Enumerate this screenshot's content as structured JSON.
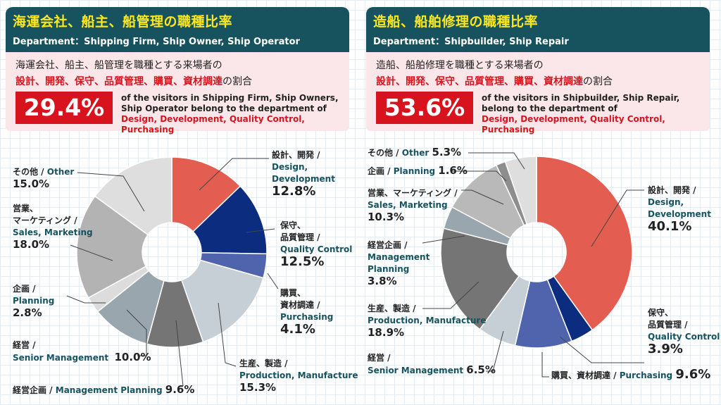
{
  "panels": [
    {
      "title_jp": "海運会社、船主、船管理の職種比率",
      "title_en": "Department：Shipping Firm, Ship Owner, Ship Operator",
      "intro_jp": "海運会社、船主、船管理を職種とする来場者の",
      "intro_red": "設計、開発、保守、品質管理、購買、資材調達",
      "intro_tail": "の割合",
      "percent": "29.4%",
      "desc_line1": "of the visitors in Shipping Firm, Ship Owners,",
      "desc_line2": "Ship Operator belong to the department of",
      "desc_line3": "Design, Development, Quality Control, Purchasing"
    },
    {
      "title_jp": "造船、船舶修理の職種比率",
      "title_en": "Department：Shipbuilder, Ship Repair",
      "intro_jp": "造船、船舶修理を職種とする来場者の",
      "intro_red": "設計、開発、保守、品質管理、購買、資材調達",
      "intro_tail": "の割合",
      "percent": "53.6%",
      "desc_line1": "of the visitors in Shipbuilder, Ship Repair,",
      "desc_line2": "belong to the department of",
      "desc_line3": "Design, Development, Quality Control, Purchasing"
    }
  ],
  "labels1": {
    "design_jp": "設計、開発 /",
    "design_en1": "Design,",
    "design_en2": "Development",
    "design_v": "12.8%",
    "qc_jp1": "保守、",
    "qc_jp2": "品質管理 /",
    "qc_en": "Quality Control",
    "qc_v": "12.5%",
    "pur_jp1": "購買、",
    "pur_jp2": "資材調達 /",
    "pur_en": "Purchasing",
    "pur_v": "4.1%",
    "prod_jp": "生産、製造 /",
    "prod_en": "Production, Manufacture",
    "prod_v": "15.3%",
    "mgp_jp": "経営企画 / ",
    "mgp_en": "Management Planning",
    "mgp_v": "9.6%",
    "sm_jp": "経営 /",
    "sm_en": "Senior Management",
    "sm_v": "10.0%",
    "pl_jp": "企画 /",
    "pl_en": "Planning",
    "pl_v": "2.8%",
    "sales_jp1": "営業、",
    "sales_jp2": "マーケティング /",
    "sales_en": "Sales, Marketing",
    "sales_v": "18.0%",
    "oth_jp": "その他 / ",
    "oth_en": "Other",
    "oth_v": "15.0%"
  },
  "labels2": {
    "design_jp": "設計、開発 /",
    "design_en1": "Design,",
    "design_en2": "Development",
    "design_v": "40.1%",
    "qc_jp1": "保守、",
    "qc_jp2": "品質管理 /",
    "qc_en": "Quality Control",
    "qc_v": "3.9%",
    "pur_jp": "購買、資材調達 / ",
    "pur_en": "Purchasing",
    "pur_v": "9.6%",
    "sm_jp": "経営 /",
    "sm_en": "Senior Management",
    "sm_v": "6.5%",
    "prod_jp": "生産、製造 /",
    "prod_en": "Production, Manufacture",
    "prod_v": "18.9%",
    "mgp_jp": "経営企画 /",
    "mgp_en1": "Management",
    "mgp_en2": "Planning",
    "mgp_v": "3.8%",
    "sales_jp": "営業、マーケティング /",
    "sales_en": "Sales, Marketing",
    "sales_v": "10.3%",
    "pl_jp": "企画 / ",
    "pl_en": "Planning",
    "pl_v": "1.6%",
    "oth_jp": "その他 / ",
    "oth_en": "Other",
    "oth_v": "5.3%"
  },
  "chart_data": [
    {
      "type": "pie",
      "donut": true,
      "categories": [
        "設計、開発 / Design, Development",
        "保守、品質管理 / Quality Control",
        "購買、資材調達 / Purchasing",
        "生産、製造 / Production, Manufacture",
        "経営企画 / Management Planning",
        "経営 / Senior Management",
        "企画 / Planning",
        "営業、マーケティング / Sales, Marketing",
        "その他 / Other"
      ],
      "values": [
        12.8,
        12.5,
        4.1,
        15.3,
        9.6,
        10.0,
        2.8,
        18.0,
        15.0
      ],
      "colors": [
        "#e35e51",
        "#0b2c7f",
        "#5064ae",
        "#c6cfd6",
        "#757575",
        "#9aa6ae",
        "#dcdcdc",
        "#b3b3b3",
        "#dedede"
      ]
    },
    {
      "type": "pie",
      "donut": true,
      "categories": [
        "設計、開発 / Design, Development",
        "保守、品質管理 / Quality Control",
        "購買、資材調達 / Purchasing",
        "経営 / Senior Management",
        "生産、製造 / Production, Manufacture",
        "経営企画 / Management Planning",
        "営業、マーケティング / Sales, Marketing",
        "企画 / Planning",
        "その他 / Other"
      ],
      "values": [
        40.1,
        3.9,
        9.6,
        6.5,
        18.9,
        3.8,
        10.3,
        1.6,
        5.3
      ],
      "colors": [
        "#e35e51",
        "#0b2c7f",
        "#5064ae",
        "#c6cfd6",
        "#757575",
        "#9aa6ae",
        "#b9b9b9",
        "#8e8e8e",
        "#dedede"
      ]
    }
  ]
}
